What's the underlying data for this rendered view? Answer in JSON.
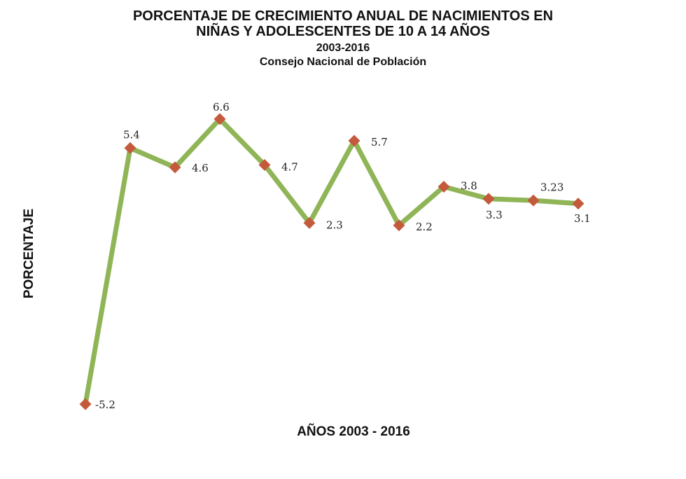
{
  "chart_data": {
    "type": "line",
    "title": "PORCENTAJE DE CRECIMIENTO ANUAL DE NACIMIENTOS EN NIÑAS Y ADOLESCENTES DE 10 A 14 AÑOS",
    "title_lines": [
      "PORCENTAJE DE CRECIMIENTO ANUAL DE NACIMIENTOS EN",
      "NIÑAS Y ADOLESCENTES DE 10 A 14 AÑOS"
    ],
    "subtitle": "2003-2016",
    "source": "Consejo Nacional de Población",
    "xlabel": "AÑOS 2003 - 2016",
    "ylabel": "PORCENTAJE",
    "values": [
      -5.2,
      5.4,
      4.6,
      6.6,
      4.7,
      2.3,
      5.7,
      2.2,
      3.8,
      3.3,
      3.23,
      3.1
    ],
    "data_labels": [
      "-5.2",
      "5.4",
      "4.6",
      "6.6",
      "4.7",
      "2.3",
      "5.7",
      "2.2",
      "3.8",
      "3.3",
      "3.23",
      "3.1"
    ],
    "grid": false,
    "axes_visible": false,
    "line_color": "#8fb557",
    "marker_color": "#c45a3c",
    "marker": "diamond"
  }
}
